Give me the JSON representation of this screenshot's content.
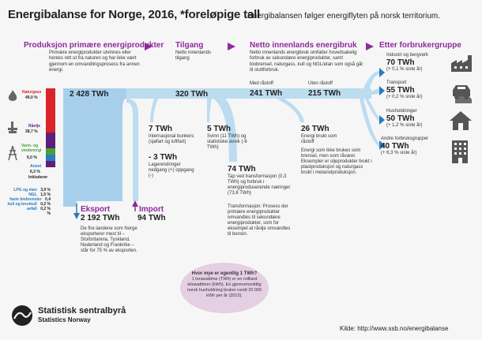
{
  "title": "Energibalanse for Norge, 2016, *foreløpige tall",
  "subtitle": "Energibalansen følger energiflyten på norsk territorium.",
  "colors": {
    "purple": "#8e2a9c",
    "flow_blue": "#bcdcf0",
    "flow_blue_dark": "#a7cfec",
    "arrow_blue": "#2b7bbf",
    "gas_red": "#d9242a",
    "oil_purple": "#5e1f7a",
    "hydro_green": "#44a334",
    "other_blue": "#2b7bbf",
    "bubble": "#e4cfe4"
  },
  "sections": {
    "production": {
      "header": "Produksjon primære energiprodukter",
      "desc": "Primære energiprodukter utvinnes eller hentes rett ut fra naturen og har ikke vært gjennom en omvandlingsprosess fra annen energi."
    },
    "supply": {
      "header": "Tilgang",
      "desc": "Netto innenlands tilgang"
    },
    "net_use": {
      "header": "Netto innenlands energibruk",
      "desc": "Netto innenlands energibruk omfatter hovedsakelig forbruk av sekundære energiprodukter, samt biobrensel, naturgass, kull og NGL/etan som også går til sluttforbruk."
    },
    "consumers": {
      "header": "Etter forbrukergruppe"
    }
  },
  "sources": {
    "gas": {
      "name": "Naturgass",
      "share": "49,0 %"
    },
    "oil": {
      "name": "Råolje",
      "share": "38,7 %"
    },
    "hydro": {
      "name": "Vann- og vindenergi",
      "share": "6,0 %"
    },
    "other": {
      "name": "Annet",
      "share": "6,3 %"
    },
    "other_detail_header": "Inkluderer",
    "other_detail": [
      {
        "name": "LPG og etan",
        "share": "3,9 %"
      },
      {
        "name": "NGL",
        "share": "1,5 %"
      },
      {
        "name": "faste biobrensler",
        "share": "0,4 %"
      },
      {
        "name": "kull og brunkull",
        "share": "0,2 %"
      },
      {
        "name": "avfall",
        "share": "0,2 %"
      }
    ]
  },
  "values": {
    "production_total": "2 428 TWh",
    "supply_total": "320 TWh",
    "with_conversion_label": "Med råstoff",
    "with_conversion": "241 TWh",
    "without_conversion_label": "Uten råstoff",
    "without_conversion": "215 TWh",
    "bunkers_value": "7 TWh",
    "bunkers_desc": "Internasjonal bunkers (sjøfart og luftfart)",
    "stock_value": "- 3 TWh",
    "stock_desc": "Lagerendringer nedgang (+) oppgang (-)",
    "loss_value": "5 TWh",
    "loss_desc": "Svinn (11 TWh) og statistiske avvik (-6 TWh)",
    "conversion_value": "74 TWh",
    "conversion_desc": "Tap ved transformasjon (0,3 TWh) og forbruk i energiproduserende næringer (73,6 TWh)",
    "transformation_desc": "Transformasjon: Prosess der primære energiprodukter omvandles til sekundære energiprodukter, som for eksempel at råolje omvandles til bensin.",
    "raw_value": "26 TWh",
    "raw_desc1": "Energi brukt som råstoff",
    "raw_desc2": "Energi som ikke brukes som brensel, men som råvarer. Eksempler er oljeprodukter brukt i plastproduksjon og naturgass brukt i metanolproduksjon.",
    "export_header": "Eksport",
    "export_value": "2 192 TWh",
    "export_desc": "De fire landene som Norge eksporterer mest til – Storbritannia, Tyskland, Nederland og Frankrike – står for 75 % av eksporten.",
    "import_header": "Import",
    "import_value": "94 TWh"
  },
  "consumers": [
    {
      "name": "Industri og bergverk",
      "value": "70 TWh",
      "change": "(+ 0,1 % siste år)",
      "icon": "factory-icon"
    },
    {
      "name": "Transport",
      "value": "55 TWh",
      "change": "(+ 0,2 % siste år)",
      "icon": "car-icon"
    },
    {
      "name": "Husholdninger",
      "value": "50 TWh",
      "change": "(+ 1,2 % siste år)",
      "icon": "house-icon"
    },
    {
      "name": "Andre forbruksgrupper",
      "value": "40 TWh",
      "change": "(+ 6,3 % siste år)",
      "icon": "office-building-icon"
    }
  ],
  "bubble": {
    "question": "Hvor mye er egentlig 1 TWh?",
    "text": "1 terawattime (TWh) er en milliard kilowattimer (kWh). En gjennomsnittlig norsk husholdning bruker rundt 20 000 kWh per år (2012)."
  },
  "logo": {
    "line1": "Statistisk sentralbyrå",
    "line2": "Statistics Norway"
  },
  "source": "Kilde: http://www.ssb.no/energibalanse"
}
